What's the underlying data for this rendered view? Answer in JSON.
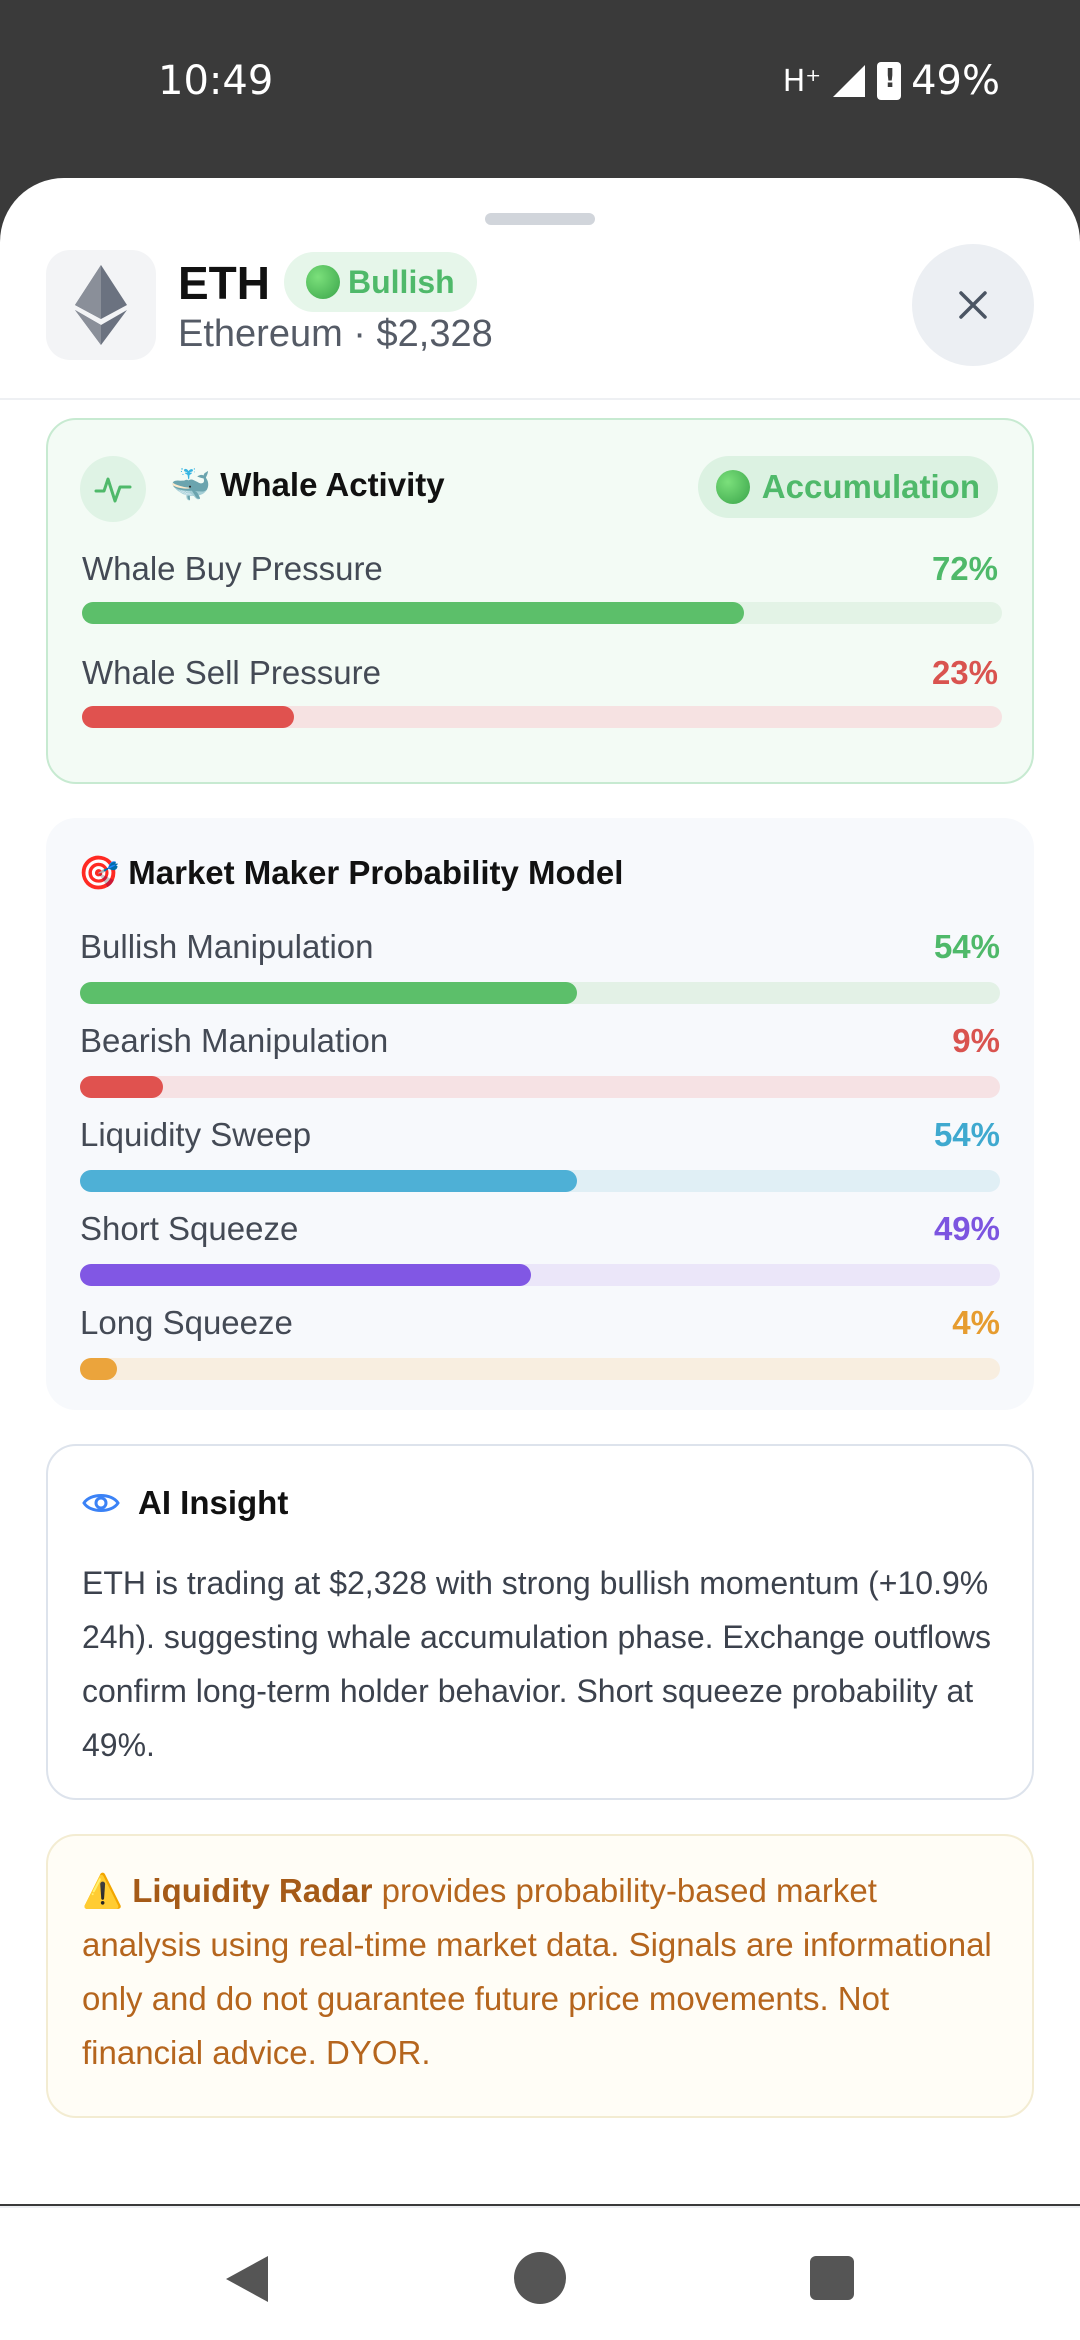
{
  "status_bar": {
    "time": "10:49",
    "network": "H⁺",
    "battery": "49%"
  },
  "coin": {
    "symbol": "ETH",
    "sentiment": "Bullish",
    "subtitle": "Ethereum · $2,328"
  },
  "whale": {
    "title": "🐳 Whale Activity",
    "badge": "Accumulation",
    "rows": [
      {
        "label": "Whale Buy Pressure",
        "value": "72%",
        "pct": 72,
        "color": "#5cbf6a",
        "track": "#e3f3e6",
        "text_color": "#4fb96a"
      },
      {
        "label": "Whale Sell Pressure",
        "value": "23%",
        "pct": 23,
        "color": "#e0524f",
        "track": "#f6e2e2",
        "text_color": "#d9534f"
      }
    ]
  },
  "mm_model": {
    "title": "🎯 Market Maker Probability Model",
    "rows": [
      {
        "label": "Bullish Manipulation",
        "value": "54%",
        "pct": 54,
        "color": "#5cbf6a",
        "track": "#e3f1e6",
        "text_color": "#4fb96a"
      },
      {
        "label": "Bearish Manipulation",
        "value": "9%",
        "pct": 9,
        "color": "#e0524f",
        "track": "#f6e2e4",
        "text_color": "#d9534f"
      },
      {
        "label": "Liquidity Sweep",
        "value": "54%",
        "pct": 54,
        "color": "#4eb0d6",
        "track": "#e0eff5",
        "text_color": "#3fa9cf"
      },
      {
        "label": "Short Squeeze",
        "value": "49%",
        "pct": 49,
        "color": "#8157e4",
        "track": "#ebe6f9",
        "text_color": "#7c55e0"
      },
      {
        "label": "Long Squeeze",
        "value": "4%",
        "pct": 4,
        "color": "#eba43c",
        "track": "#f8eee0",
        "text_color": "#e69c2f"
      }
    ]
  },
  "ai_insight": {
    "title": "AI Insight",
    "text": "ETH is trading at $2,328 with strong bullish momentum (+10.9% 24h). suggesting whale accumulation phase. Exchange outflows confirm long-term holder behavior. Short squeeze probability at 49%."
  },
  "disclaimer": {
    "icon": "⚠️",
    "brand": "Liquidity Radar",
    "text": " provides probability-based market analysis using real-time market data. Signals are informational only and do not guarantee future price movements. Not financial advice. DYOR."
  }
}
